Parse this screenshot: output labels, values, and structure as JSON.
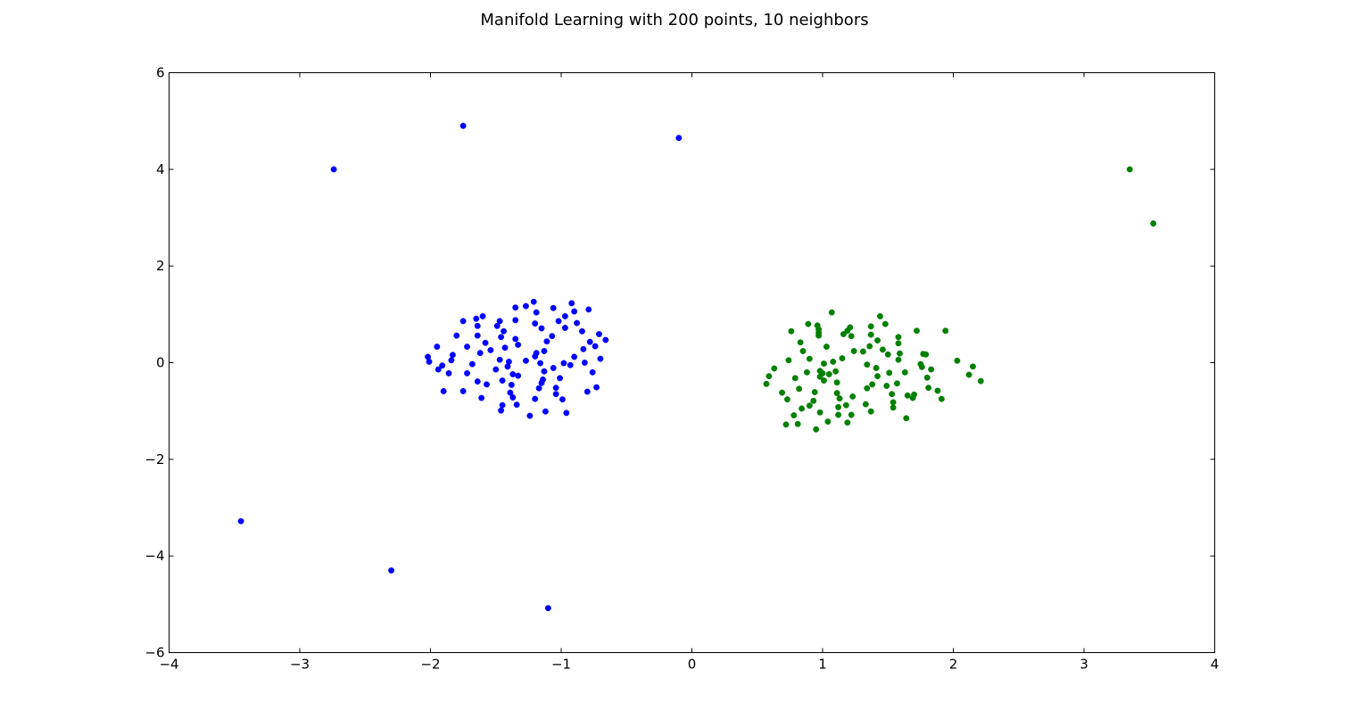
{
  "chart_data": {
    "type": "scatter",
    "title": "Manifold Learning with 200 points, 10 neighbors",
    "xlabel": "",
    "ylabel": "",
    "xlim": [
      -4,
      4
    ],
    "ylim": [
      -6,
      6
    ],
    "xticks": [
      -4,
      -3,
      -2,
      -1,
      0,
      1,
      2,
      3,
      4
    ],
    "yticks": [
      -6,
      -4,
      -2,
      0,
      2,
      4,
      6
    ],
    "xtick_labels": [
      "−4",
      "−3",
      "−2",
      "−1",
      "0",
      "1",
      "2",
      "3",
      "4"
    ],
    "ytick_labels": [
      "−6",
      "−4",
      "−2",
      "0",
      "2",
      "4",
      "6"
    ],
    "grid": false,
    "series": [
      {
        "color": "#0000ff",
        "points": [
          [
            -2.02,
            0.12
          ],
          [
            -2.01,
            0.02
          ],
          [
            -1.95,
            0.33
          ],
          [
            -1.94,
            -0.14
          ],
          [
            -1.91,
            -0.06
          ],
          [
            -1.9,
            -0.59
          ],
          [
            -1.86,
            -0.22
          ],
          [
            -1.84,
            0.05
          ],
          [
            -1.83,
            0.16
          ],
          [
            -1.8,
            0.56
          ],
          [
            -1.75,
            0.86
          ],
          [
            -1.75,
            -0.59
          ],
          [
            -1.72,
            0.33
          ],
          [
            -1.72,
            -0.22
          ],
          [
            -1.68,
            -0.03
          ],
          [
            -1.65,
            0.91
          ],
          [
            -1.64,
            0.76
          ],
          [
            -1.64,
            0.56
          ],
          [
            -1.64,
            -0.39
          ],
          [
            -1.62,
            0.2
          ],
          [
            -1.61,
            -0.73
          ],
          [
            -1.6,
            0.96
          ],
          [
            -1.58,
            0.41
          ],
          [
            -1.57,
            -0.45
          ],
          [
            -1.54,
            0.26
          ],
          [
            -1.5,
            -0.14
          ],
          [
            -1.49,
            0.76
          ],
          [
            -1.47,
            0.86
          ],
          [
            -1.47,
            0.06
          ],
          [
            -1.46,
            0.53
          ],
          [
            -1.46,
            -0.99
          ],
          [
            -1.45,
            -0.88
          ],
          [
            -1.45,
            -0.37
          ],
          [
            -1.44,
            0.65
          ],
          [
            -1.43,
            0.31
          ],
          [
            -1.41,
            -0.08
          ],
          [
            -1.4,
            0.02
          ],
          [
            -1.39,
            -0.62
          ],
          [
            -1.38,
            -0.46
          ],
          [
            -1.37,
            -0.24
          ],
          [
            -1.37,
            -0.72
          ],
          [
            -1.35,
            0.49
          ],
          [
            -1.35,
            0.88
          ],
          [
            -1.35,
            1.14
          ],
          [
            -1.34,
            -0.87
          ],
          [
            -1.33,
            -0.27
          ],
          [
            -1.33,
            0.37
          ],
          [
            -1.27,
            0.04
          ],
          [
            -1.27,
            1.17
          ],
          [
            -1.24,
            -1.1
          ],
          [
            -1.21,
            1.26
          ],
          [
            -1.2,
            0.81
          ],
          [
            -1.2,
            0.13
          ],
          [
            -1.2,
            -0.75
          ],
          [
            -1.19,
            0.2
          ],
          [
            -1.19,
            1.04
          ],
          [
            -1.17,
            -0.53
          ],
          [
            -1.16,
            -0.01
          ],
          [
            -1.15,
            -0.42
          ],
          [
            -1.15,
            0.71
          ],
          [
            -1.14,
            -0.35
          ],
          [
            -1.13,
            -0.18
          ],
          [
            -1.13,
            0.24
          ],
          [
            -1.12,
            -1.01
          ],
          [
            -1.11,
            0.44
          ],
          [
            -1.07,
            0.55
          ],
          [
            -1.06,
            1.13
          ],
          [
            -1.06,
            -0.11
          ],
          [
            -1.04,
            -0.65
          ],
          [
            -1.04,
            -0.52
          ],
          [
            -1.02,
            0.86
          ],
          [
            -1.01,
            -0.32
          ],
          [
            -0.99,
            -0.76
          ],
          [
            -0.98,
            -0.01
          ],
          [
            -0.97,
            0.96
          ],
          [
            -0.97,
            0.72
          ],
          [
            -0.96,
            -1.04
          ],
          [
            -0.93,
            -0.05
          ],
          [
            -0.92,
            1.23
          ],
          [
            -0.9,
            0.12
          ],
          [
            -0.9,
            1.06
          ],
          [
            -0.88,
            0.82
          ],
          [
            -0.84,
            0.65
          ],
          [
            -0.83,
            0.28
          ],
          [
            -0.82,
            0.0
          ],
          [
            -0.8,
            -0.6
          ],
          [
            -0.79,
            1.1
          ],
          [
            -0.78,
            0.43
          ],
          [
            -0.76,
            -0.2
          ],
          [
            -0.74,
            0.34
          ],
          [
            -0.73,
            -0.51
          ],
          [
            -0.71,
            0.59
          ],
          [
            -0.7,
            0.08
          ],
          [
            -0.66,
            0.47
          ],
          [
            -1.75,
            4.9
          ],
          [
            -2.74,
            4.0
          ],
          [
            -0.1,
            4.65
          ],
          [
            -3.45,
            -3.28
          ],
          [
            -2.3,
            -4.3
          ],
          [
            -1.1,
            -5.08
          ]
        ]
      },
      {
        "color": "#008000",
        "points": [
          [
            0.57,
            -0.44
          ],
          [
            0.59,
            -0.28
          ],
          [
            0.63,
            -0.12
          ],
          [
            0.69,
            -0.62
          ],
          [
            0.72,
            -1.28
          ],
          [
            0.73,
            -0.76
          ],
          [
            0.74,
            0.05
          ],
          [
            0.76,
            0.65
          ],
          [
            0.78,
            -1.09
          ],
          [
            0.79,
            -0.32
          ],
          [
            0.81,
            -1.27
          ],
          [
            0.82,
            -0.54
          ],
          [
            0.83,
            0.42
          ],
          [
            0.84,
            -0.95
          ],
          [
            0.85,
            0.24
          ],
          [
            0.88,
            -0.2
          ],
          [
            0.89,
            0.8
          ],
          [
            0.9,
            0.08
          ],
          [
            0.9,
            -0.89
          ],
          [
            0.93,
            -0.79
          ],
          [
            0.94,
            -0.61
          ],
          [
            0.95,
            -1.38
          ],
          [
            0.96,
            0.77
          ],
          [
            0.97,
            0.69
          ],
          [
            0.97,
            0.56
          ],
          [
            0.97,
            0.62
          ],
          [
            0.98,
            -0.29
          ],
          [
            0.98,
            -0.17
          ],
          [
            0.98,
            -1.03
          ],
          [
            1.0,
            -0.22
          ],
          [
            1.01,
            -0.37
          ],
          [
            1.01,
            -0.02
          ],
          [
            1.03,
            0.33
          ],
          [
            1.04,
            -1.22
          ],
          [
            1.05,
            -0.24
          ],
          [
            1.07,
            1.04
          ],
          [
            1.08,
            0.02
          ],
          [
            1.1,
            -0.18
          ],
          [
            1.11,
            -0.41
          ],
          [
            1.11,
            -0.63
          ],
          [
            1.12,
            -0.92
          ],
          [
            1.12,
            -1.08
          ],
          [
            1.13,
            -0.74
          ],
          [
            1.15,
            0.09
          ],
          [
            1.16,
            0.59
          ],
          [
            1.18,
            -0.88
          ],
          [
            1.19,
            0.66
          ],
          [
            1.19,
            -1.24
          ],
          [
            1.21,
            0.73
          ],
          [
            1.22,
            0.55
          ],
          [
            1.22,
            -1.08
          ],
          [
            1.23,
            -0.7
          ],
          [
            1.24,
            0.24
          ],
          [
            1.31,
            0.23
          ],
          [
            1.33,
            -0.86
          ],
          [
            1.34,
            -0.53
          ],
          [
            1.34,
            -0.04
          ],
          [
            1.36,
            0.34
          ],
          [
            1.37,
            0.75
          ],
          [
            1.37,
            0.58
          ],
          [
            1.37,
            -1.01
          ],
          [
            1.38,
            -0.45
          ],
          [
            1.41,
            -0.11
          ],
          [
            1.42,
            0.46
          ],
          [
            1.42,
            -0.28
          ],
          [
            1.44,
            0.96
          ],
          [
            1.46,
            0.27
          ],
          [
            1.48,
            0.8
          ],
          [
            1.49,
            -0.48
          ],
          [
            1.5,
            0.17
          ],
          [
            1.51,
            -0.21
          ],
          [
            1.53,
            -0.65
          ],
          [
            1.54,
            -0.82
          ],
          [
            1.54,
            -0.93
          ],
          [
            1.57,
            -0.43
          ],
          [
            1.58,
            0.53
          ],
          [
            1.58,
            0.4
          ],
          [
            1.58,
            0.06
          ],
          [
            1.59,
            0.19
          ],
          [
            1.63,
            -0.2
          ],
          [
            1.64,
            -1.15
          ],
          [
            1.65,
            -0.68
          ],
          [
            1.69,
            -0.73
          ],
          [
            1.7,
            -0.66
          ],
          [
            1.72,
            0.66
          ],
          [
            1.75,
            -0.03
          ],
          [
            1.76,
            -0.09
          ],
          [
            1.77,
            0.18
          ],
          [
            1.79,
            0.17
          ],
          [
            1.8,
            -0.31
          ],
          [
            1.81,
            -0.52
          ],
          [
            1.83,
            -0.14
          ],
          [
            1.88,
            -0.58
          ],
          [
            1.91,
            -0.75
          ],
          [
            1.94,
            0.66
          ],
          [
            2.03,
            0.04
          ],
          [
            2.12,
            -0.25
          ],
          [
            2.15,
            -0.08
          ],
          [
            2.21,
            -0.38
          ],
          [
            3.35,
            4.0
          ],
          [
            3.53,
            2.88
          ]
        ]
      }
    ]
  }
}
